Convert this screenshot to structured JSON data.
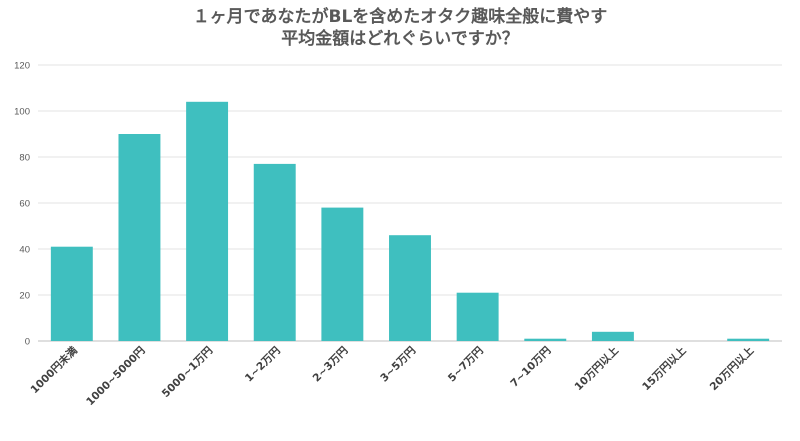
{
  "chart_data": {
    "type": "bar",
    "title_line1": "１ヶ月であなたがBLを含めたオタク趣味全般に費やす",
    "title_line2": "平均金額はどれぐらいですか？",
    "categories": [
      "1000円未満",
      "1000~5000円",
      "5000~1万円",
      "1~2万円",
      "2~3万円",
      "3~5万円",
      "5~7万円",
      "7~10万円",
      "10万円以上",
      "15万円以上",
      "20万円以上"
    ],
    "values": [
      41,
      90,
      104,
      77,
      58,
      46,
      21,
      1,
      4,
      0,
      1
    ],
    "ylim": [
      0,
      120
    ],
    "yticks": [
      0,
      20,
      40,
      60,
      80,
      100,
      120
    ],
    "grid": true,
    "bar_color": "#3fbfbf"
  }
}
